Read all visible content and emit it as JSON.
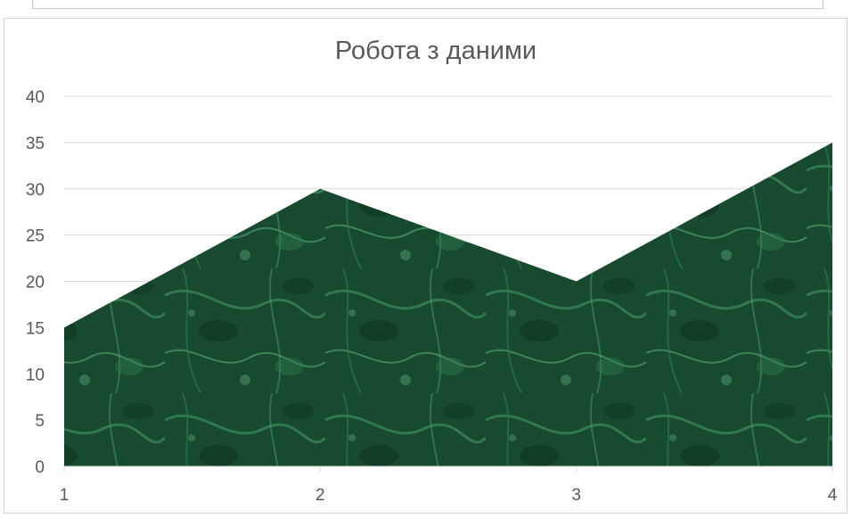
{
  "chart_data": {
    "type": "area",
    "title": "Робота з даними",
    "x": [
      "1",
      "2",
      "3",
      "4"
    ],
    "series": [
      {
        "values": [
          15,
          30,
          20,
          35
        ]
      }
    ],
    "yticks": [
      "0",
      "5",
      "10",
      "15",
      "20",
      "25",
      "30",
      "35",
      "40"
    ],
    "ylim": [
      0,
      40
    ],
    "xlabel": "",
    "ylabel": "",
    "grid": true,
    "legend": "none",
    "colors": {
      "fill_dark": "#0e3a22",
      "fill_mid": "#1d5a37",
      "fill_light": "#4f9a70",
      "grid": "#d9d9d9",
      "text": "#595959"
    }
  }
}
